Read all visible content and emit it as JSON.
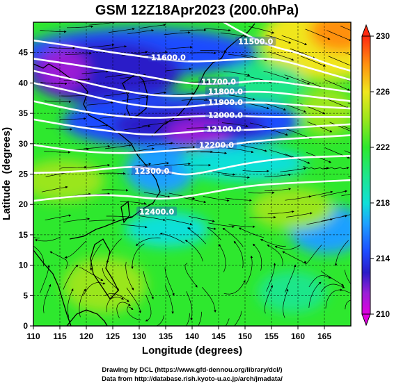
{
  "title": "GSM 12Z18Apr2023 (200.0hPa)",
  "credits": [
    "Drawing by DCL (https://www.gfd-dennou.org/library/dcl/)",
    "Data from http://database.rish.kyoto-u.ac.jp/arch/jmadata/"
  ],
  "chart_data": {
    "type": "heatmap",
    "xlabel": "Longitude (degrees)",
    "ylabel": "Latitude  (degrees)",
    "xlim": [
      110,
      170
    ],
    "ylim": [
      0,
      50
    ],
    "x_ticks": [
      110,
      115,
      120,
      125,
      130,
      135,
      140,
      145,
      150,
      155,
      160,
      165
    ],
    "y_ticks": [
      0,
      5,
      10,
      15,
      20,
      25,
      30,
      35,
      40,
      45
    ],
    "grid": true,
    "colorbar": {
      "min": 210,
      "max": 230,
      "ticks": [
        210,
        214,
        218,
        222,
        226,
        230
      ],
      "stops": [
        {
          "value": 210,
          "color": "#e000e0"
        },
        {
          "value": 211.5,
          "color": "#9a1fd6"
        },
        {
          "value": 213,
          "color": "#2a1cc8"
        },
        {
          "value": 214.5,
          "color": "#1e4cff"
        },
        {
          "value": 216.5,
          "color": "#1ea0ff"
        },
        {
          "value": 218,
          "color": "#10e0d8"
        },
        {
          "value": 220,
          "color": "#1fe68a"
        },
        {
          "value": 222,
          "color": "#2ee82e"
        },
        {
          "value": 224,
          "color": "#9ae61c"
        },
        {
          "value": 226,
          "color": "#f0e61e"
        },
        {
          "value": 228,
          "color": "#ff9010"
        },
        {
          "value": 230,
          "color": "#ff2a10"
        }
      ]
    },
    "contours": [
      {
        "level": "11500.0",
        "points": [
          [
            144,
            51
          ],
          [
            150,
            48
          ],
          [
            155,
            46
          ],
          [
            160,
            45
          ],
          [
            166,
            43
          ],
          [
            170,
            42
          ]
        ],
        "label_at": [
          152,
          46.6
        ]
      },
      {
        "level": "11600.0",
        "points": [
          [
            110,
            47
          ],
          [
            118,
            46
          ],
          [
            125,
            45
          ],
          [
            132,
            44.2
          ],
          [
            138,
            43.5
          ],
          [
            144,
            43.6
          ],
          [
            150,
            44
          ],
          [
            156,
            44
          ],
          [
            162,
            42.5
          ],
          [
            170,
            40.5
          ]
        ],
        "label_at": [
          135.5,
          44
        ]
      },
      {
        "level": "11700.0",
        "points": [
          [
            110,
            44
          ],
          [
            118,
            43
          ],
          [
            125,
            42
          ],
          [
            132,
            41
          ],
          [
            138,
            40
          ],
          [
            143,
            39.8
          ],
          [
            148,
            40
          ],
          [
            154,
            40.5
          ],
          [
            162,
            39.5
          ],
          [
            170,
            38.5
          ]
        ],
        "label_at": [
          145,
          40
        ]
      },
      {
        "level": "11800.0",
        "points": [
          [
            110,
            42
          ],
          [
            118,
            40.5
          ],
          [
            125,
            39
          ],
          [
            132,
            38
          ],
          [
            138,
            37.8
          ],
          [
            143,
            38
          ],
          [
            148,
            38.5
          ],
          [
            154,
            38.6
          ],
          [
            162,
            37.8
          ],
          [
            170,
            37
          ]
        ],
        "label_at": [
          146.3,
          38.4
        ]
      },
      {
        "level": "11900.0",
        "points": [
          [
            110,
            40
          ],
          [
            118,
            38.5
          ],
          [
            125,
            37
          ],
          [
            132,
            36
          ],
          [
            138,
            36
          ],
          [
            143,
            36.4
          ],
          [
            148,
            36.8
          ],
          [
            154,
            36.8
          ],
          [
            162,
            36.2
          ],
          [
            170,
            35.8
          ]
        ],
        "label_at": [
          146.3,
          36.6
        ]
      },
      {
        "level": "12000.0",
        "points": [
          [
            110,
            37
          ],
          [
            118,
            35.5
          ],
          [
            125,
            34.6
          ],
          [
            132,
            34.2
          ],
          [
            138,
            34.4
          ],
          [
            143,
            34.6
          ],
          [
            148,
            34.6
          ],
          [
            154,
            34.4
          ],
          [
            162,
            34.4
          ],
          [
            170,
            34.4
          ]
        ],
        "label_at": [
          146.3,
          34.5
        ]
      },
      {
        "level": "12100.0",
        "points": [
          [
            110,
            34
          ],
          [
            118,
            32.8
          ],
          [
            125,
            32
          ],
          [
            132,
            31.4
          ],
          [
            138,
            31.8
          ],
          [
            143,
            32.2
          ],
          [
            148,
            32.2
          ],
          [
            154,
            32.4
          ],
          [
            162,
            32.8
          ],
          [
            170,
            33.2
          ]
        ],
        "label_at": [
          146,
          32.2
        ]
      },
      {
        "level": "12200.0",
        "points": [
          [
            110,
            29.8
          ],
          [
            118,
            28.8
          ],
          [
            125,
            28.4
          ],
          [
            132,
            28.6
          ],
          [
            138,
            29
          ],
          [
            143,
            29.2
          ],
          [
            148,
            30
          ],
          [
            154,
            30.6
          ],
          [
            162,
            31
          ],
          [
            170,
            31.4
          ]
        ],
        "label_at": [
          144.6,
          29.6
        ]
      },
      {
        "level": "12300.0",
        "points": [
          [
            110,
            25.2
          ],
          [
            116,
            25.3
          ],
          [
            121,
            25.6
          ],
          [
            126,
            26.1
          ],
          [
            130,
            26.2
          ],
          [
            134,
            25.7
          ],
          [
            138,
            24.8
          ],
          [
            142,
            25.2
          ],
          [
            148,
            26.4
          ],
          [
            155,
            27.4
          ],
          [
            162,
            27.8
          ],
          [
            170,
            28
          ]
        ],
        "label_at": [
          132.4,
          25.3
        ]
      },
      {
        "level": "12400.0",
        "points": [
          [
            110,
            20.6
          ],
          [
            116,
            21.2
          ],
          [
            122,
            21.6
          ],
          [
            128,
            21.4
          ],
          [
            134,
            20.8
          ],
          [
            140,
            21.4
          ],
          [
            146,
            22.4
          ],
          [
            152,
            23.2
          ],
          [
            160,
            23.6
          ],
          [
            170,
            24
          ]
        ],
        "label_at": [
          133.3,
          18.6
        ]
      }
    ]
  }
}
